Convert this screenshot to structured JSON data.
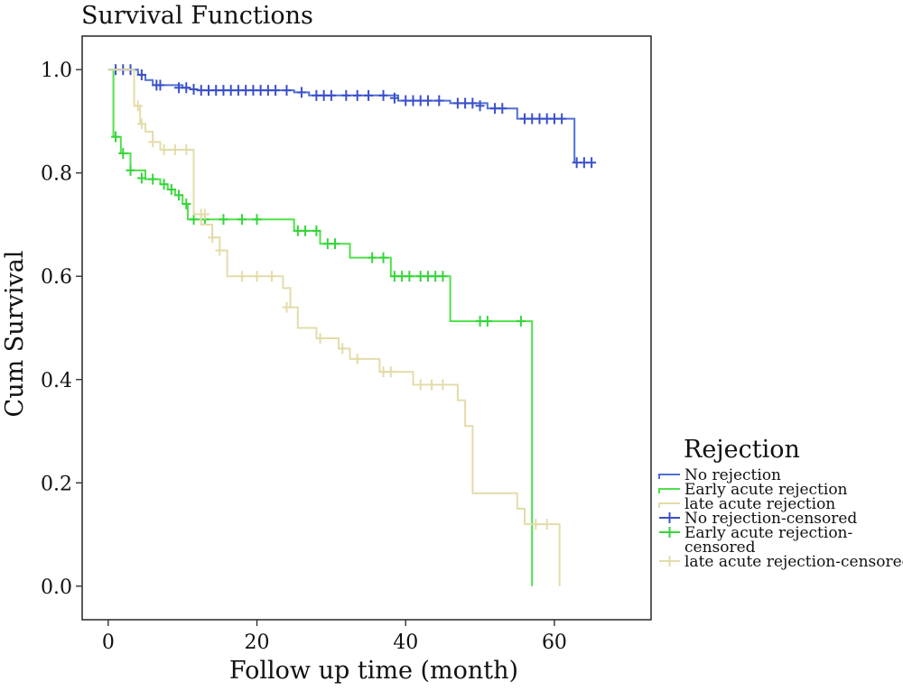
{
  "chart_data": {
    "type": "line",
    "title": "Survival Functions",
    "xlabel": "Follow up time (month)",
    "ylabel": "Cum Survival",
    "xlim": [
      -3.5,
      73
    ],
    "ylim": [
      -0.065,
      1.065
    ],
    "xticks": [
      0,
      20,
      40,
      60
    ],
    "xtick_labels": [
      "0",
      "20",
      "40",
      "60"
    ],
    "yticks": [
      0.0,
      0.2,
      0.4,
      0.6,
      0.8,
      1.0
    ],
    "ytick_labels": [
      "0.0",
      "0.2",
      "0.4",
      "0.6",
      "0.8",
      "1.0"
    ],
    "grid": false,
    "legend": {
      "title": "Rejection",
      "placement": "right",
      "entries": [
        {
          "label": "No rejection",
          "style": "line",
          "color": "#4f6fd6"
        },
        {
          "label": "Early acute rejection",
          "style": "line",
          "color": "#4fe04a"
        },
        {
          "label": "late acute rejection",
          "style": "line",
          "color": "#e3dcaa"
        },
        {
          "label": "No rejection-censored",
          "style": "cross",
          "color": "#3a4fc9"
        },
        {
          "label": "Early acute rejection-censored",
          "lines": [
            "Early acute rejection-",
            "censored"
          ],
          "style": "cross",
          "color": "#35d43a"
        },
        {
          "label": "late acute rejection-censored",
          "style": "cross",
          "color": "#e3dcaa"
        }
      ]
    },
    "series": [
      {
        "name": "No rejection",
        "color": "#4f6fd6",
        "censor_color": "#3a4fc9",
        "x": [
          0,
          4,
          5,
          6,
          10,
          11,
          12,
          21,
          25,
          27,
          39,
          46,
          51,
          55,
          62,
          62.7
        ],
        "y": [
          1.0,
          0.99,
          0.98,
          0.97,
          0.965,
          0.962,
          0.96,
          0.96,
          0.956,
          0.95,
          0.94,
          0.935,
          0.925,
          0.905,
          0.905,
          0.82
        ],
        "censored": [
          [
            1,
            1.0
          ],
          [
            2,
            1.0
          ],
          [
            3,
            1.0
          ],
          [
            4.5,
            0.99
          ],
          [
            6.5,
            0.97
          ],
          [
            7,
            0.97
          ],
          [
            9.5,
            0.965
          ],
          [
            10.5,
            0.965
          ],
          [
            11.5,
            0.962
          ],
          [
            12.5,
            0.96
          ],
          [
            13.5,
            0.96
          ],
          [
            14.5,
            0.96
          ],
          [
            15.5,
            0.96
          ],
          [
            16.5,
            0.96
          ],
          [
            17.5,
            0.96
          ],
          [
            18.5,
            0.96
          ],
          [
            19.5,
            0.96
          ],
          [
            20.5,
            0.96
          ],
          [
            21.5,
            0.96
          ],
          [
            22.5,
            0.96
          ],
          [
            24,
            0.96
          ],
          [
            26,
            0.956
          ],
          [
            28,
            0.95
          ],
          [
            29,
            0.95
          ],
          [
            30,
            0.95
          ],
          [
            32,
            0.95
          ],
          [
            33.5,
            0.95
          ],
          [
            35,
            0.95
          ],
          [
            37,
            0.95
          ],
          [
            38.5,
            0.945
          ],
          [
            40,
            0.94
          ],
          [
            41,
            0.94
          ],
          [
            42,
            0.94
          ],
          [
            43,
            0.94
          ],
          [
            44.5,
            0.94
          ],
          [
            47,
            0.935
          ],
          [
            48,
            0.935
          ],
          [
            49,
            0.935
          ],
          [
            50,
            0.93
          ],
          [
            52,
            0.925
          ],
          [
            53,
            0.925
          ],
          [
            56,
            0.905
          ],
          [
            57,
            0.905
          ],
          [
            58,
            0.905
          ],
          [
            59,
            0.905
          ],
          [
            60,
            0.905
          ],
          [
            61,
            0.905
          ],
          [
            63,
            0.82
          ],
          [
            64,
            0.82
          ],
          [
            65,
            0.82
          ]
        ]
      },
      {
        "name": "Early acute rejection",
        "color": "#4fe04a",
        "censor_color": "#35d43a",
        "x": [
          0,
          0.7,
          1.7,
          3,
          5,
          7,
          8,
          9,
          10,
          10.7,
          25,
          28.5,
          32.5,
          38,
          46,
          57,
          57
        ],
        "y": [
          1.0,
          0.87,
          0.838,
          0.805,
          0.788,
          0.778,
          0.768,
          0.757,
          0.74,
          0.71,
          0.688,
          0.663,
          0.636,
          0.6,
          0.513,
          0.513,
          0.0
        ],
        "censored": [
          [
            1,
            0.87
          ],
          [
            2,
            0.838
          ],
          [
            3,
            0.805
          ],
          [
            4.5,
            0.79
          ],
          [
            6,
            0.788
          ],
          [
            7.5,
            0.778
          ],
          [
            8.5,
            0.768
          ],
          [
            9.5,
            0.757
          ],
          [
            10.5,
            0.74
          ],
          [
            11.5,
            0.71
          ],
          [
            13,
            0.71
          ],
          [
            15.5,
            0.71
          ],
          [
            18,
            0.71
          ],
          [
            20,
            0.71
          ],
          [
            25.5,
            0.688
          ],
          [
            26.5,
            0.688
          ],
          [
            28,
            0.688
          ],
          [
            29.5,
            0.663
          ],
          [
            30.5,
            0.663
          ],
          [
            35.5,
            0.636
          ],
          [
            37,
            0.636
          ],
          [
            38.5,
            0.6
          ],
          [
            39.5,
            0.6
          ],
          [
            40.5,
            0.6
          ],
          [
            42,
            0.6
          ],
          [
            43,
            0.6
          ],
          [
            44,
            0.6
          ],
          [
            45,
            0.6
          ],
          [
            50,
            0.513
          ],
          [
            51,
            0.513
          ],
          [
            55.5,
            0.513
          ]
        ]
      },
      {
        "name": "late acute rejection",
        "color": "#e3dcaa",
        "censor_color": "#e3dcaa",
        "x": [
          0,
          3.5,
          4.3,
          5,
          6,
          7,
          11.5,
          12.5,
          14,
          15,
          16,
          21,
          23.5,
          24.5,
          25.5,
          28,
          31,
          32.5,
          36.5,
          41,
          47,
          48,
          49,
          55,
          56,
          60.7,
          60.7
        ],
        "y": [
          1.0,
          0.93,
          0.895,
          0.88,
          0.86,
          0.845,
          0.72,
          0.7,
          0.675,
          0.65,
          0.6,
          0.6,
          0.577,
          0.54,
          0.5,
          0.48,
          0.46,
          0.44,
          0.415,
          0.39,
          0.36,
          0.31,
          0.18,
          0.15,
          0.12,
          0.12,
          0.0
        ],
        "censored": [
          [
            4,
            0.93
          ],
          [
            4.5,
            0.895
          ],
          [
            6,
            0.86
          ],
          [
            7.5,
            0.845
          ],
          [
            9,
            0.845
          ],
          [
            10.5,
            0.845
          ],
          [
            12.5,
            0.72
          ],
          [
            13,
            0.72
          ],
          [
            14,
            0.675
          ],
          [
            15,
            0.65
          ],
          [
            18,
            0.6
          ],
          [
            20,
            0.6
          ],
          [
            22,
            0.6
          ],
          [
            24,
            0.54
          ],
          [
            28.5,
            0.48
          ],
          [
            31.5,
            0.46
          ],
          [
            33.5,
            0.44
          ],
          [
            37,
            0.415
          ],
          [
            38,
            0.415
          ],
          [
            42,
            0.39
          ],
          [
            43.5,
            0.39
          ],
          [
            45,
            0.39
          ],
          [
            57.5,
            0.12
          ],
          [
            59,
            0.12
          ]
        ]
      }
    ]
  }
}
